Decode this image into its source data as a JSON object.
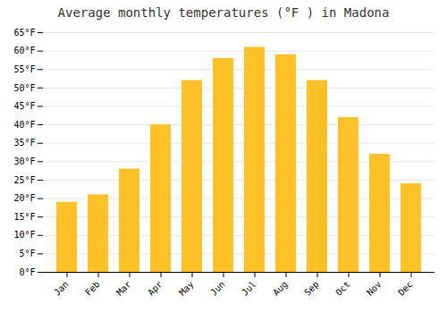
{
  "chart_data": {
    "type": "bar",
    "title": "Average monthly temperatures (°F ) in Madona",
    "categories": [
      "Jan",
      "Feb",
      "Mar",
      "Apr",
      "May",
      "Jun",
      "Jul",
      "Aug",
      "Sep",
      "Oct",
      "Nov",
      "Dec"
    ],
    "values": [
      19,
      21,
      28,
      40,
      52,
      58,
      61,
      59,
      52,
      42,
      32,
      24
    ],
    "color": "#FFC125",
    "ylim": [
      0,
      65
    ],
    "yticks": [
      {
        "value": 0,
        "label": "0°F"
      },
      {
        "value": 5,
        "label": "5°F"
      },
      {
        "value": 10,
        "label": "10°F"
      },
      {
        "value": 15,
        "label": "15°F"
      },
      {
        "value": 20,
        "label": "20°F"
      },
      {
        "value": 25,
        "label": "25°F"
      },
      {
        "value": 30,
        "label": "30°F"
      },
      {
        "value": 35,
        "label": "35°F"
      },
      {
        "value": 40,
        "label": "40°F"
      },
      {
        "value": 45,
        "label": "45°F"
      },
      {
        "value": 50,
        "label": "50°F"
      },
      {
        "value": 55,
        "label": "55°F"
      },
      {
        "value": 60,
        "label": "60°F"
      },
      {
        "value": 65,
        "label": "65°F"
      }
    ],
    "grid": true
  }
}
